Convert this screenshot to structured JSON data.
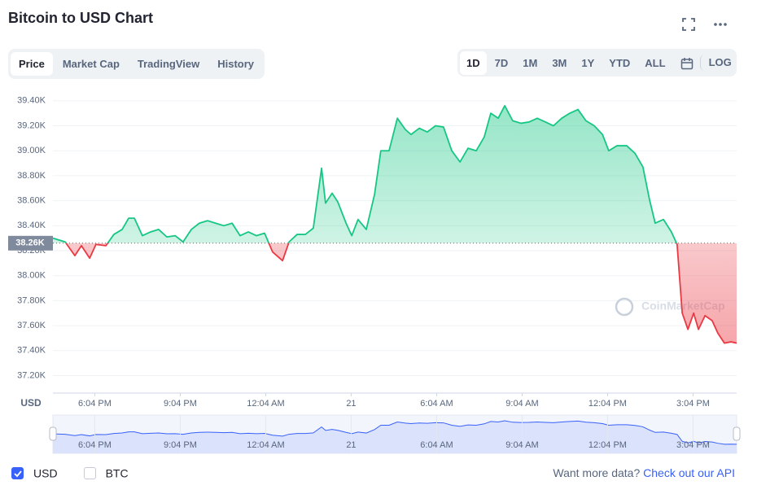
{
  "header": {
    "title": "Bitcoin to USD Chart",
    "tabs": [
      "Price",
      "Market Cap",
      "TradingView",
      "History"
    ],
    "active_tab": 0,
    "ranges": [
      "1D",
      "7D",
      "1M",
      "3M",
      "1Y",
      "YTD",
      "ALL"
    ],
    "active_range": 0,
    "log": "LOG"
  },
  "chart_data": {
    "type": "line",
    "watermark": "CoinMarketCap",
    "ylabel": "USD",
    "up_color": "#16c784",
    "down_color": "#ea3943",
    "grid": true,
    "baseline": {
      "value": 38260,
      "label": "38.26K"
    },
    "xlim": [
      16.6,
      40.6
    ],
    "xticks": [
      {
        "value": 18.07,
        "label": "6:04 PM"
      },
      {
        "value": 21.07,
        "label": "9:04 PM"
      },
      {
        "value": 24.07,
        "label": "12:04 AM"
      },
      {
        "value": 27.07,
        "label": "21"
      },
      {
        "value": 30.07,
        "label": "6:04 AM"
      },
      {
        "value": 33.07,
        "label": "9:04 AM"
      },
      {
        "value": 36.07,
        "label": "12:04 PM"
      },
      {
        "value": 39.07,
        "label": "3:04 PM"
      }
    ],
    "ylim": [
      37060,
      39490
    ],
    "yticks": [
      {
        "value": 37200,
        "label": "37.20K"
      },
      {
        "value": 37400,
        "label": "37.40K"
      },
      {
        "value": 37600,
        "label": "37.60K"
      },
      {
        "value": 37800,
        "label": "37.80K"
      },
      {
        "value": 38000,
        "label": "38.00K"
      },
      {
        "value": 38200,
        "label": "38.20K"
      },
      {
        "value": 38400,
        "label": "38.40K"
      },
      {
        "value": 38600,
        "label": "38.60K"
      },
      {
        "value": 38800,
        "label": "38.80K"
      },
      {
        "value": 39000,
        "label": "39.00K"
      },
      {
        "value": 39200,
        "label": "39.20K"
      },
      {
        "value": 39400,
        "label": "39.40K"
      }
    ],
    "x": [
      16.6,
      17.03,
      17.37,
      17.6,
      17.89,
      18.11,
      18.46,
      18.74,
      19.03,
      19.26,
      19.46,
      19.74,
      20.03,
      20.31,
      20.6,
      20.89,
      21.17,
      21.46,
      21.74,
      22.03,
      22.31,
      22.6,
      22.89,
      23.17,
      23.46,
      23.74,
      24.03,
      24.31,
      24.66,
      24.89,
      25.17,
      25.46,
      25.74,
      26.03,
      26.17,
      26.4,
      26.6,
      26.89,
      27.09,
      27.31,
      27.6,
      27.89,
      28.11,
      28.4,
      28.69,
      28.97,
      29.17,
      29.46,
      29.74,
      30.03,
      30.31,
      30.6,
      30.89,
      31.17,
      31.46,
      31.74,
      31.97,
      32.23,
      32.46,
      32.74,
      33.03,
      33.31,
      33.6,
      33.89,
      34.17,
      34.46,
      34.74,
      35.03,
      35.31,
      35.6,
      35.89,
      36.11,
      36.4,
      36.74,
      37.03,
      37.31,
      37.54,
      37.74,
      38.03,
      38.31,
      38.51,
      38.69,
      38.89,
      39.09,
      39.26,
      39.49,
      39.74,
      39.94,
      40.17,
      40.4,
      40.6
    ],
    "values": [
      38300,
      38270,
      38160,
      38240,
      38140,
      38250,
      38240,
      38330,
      38370,
      38460,
      38460,
      38320,
      38350,
      38370,
      38310,
      38320,
      38270,
      38370,
      38420,
      38440,
      38420,
      38400,
      38420,
      38320,
      38350,
      38320,
      38340,
      38190,
      38120,
      38270,
      38330,
      38330,
      38380,
      38860,
      38580,
      38660,
      38590,
      38420,
      38320,
      38450,
      38370,
      38650,
      39000,
      39000,
      39260,
      39170,
      39130,
      39180,
      39150,
      39200,
      39190,
      39000,
      38910,
      39020,
      39000,
      39110,
      39300,
      39260,
      39360,
      39240,
      39220,
      39230,
      39260,
      39230,
      39200,
      39260,
      39300,
      39330,
      39240,
      39200,
      39130,
      39000,
      39040,
      39040,
      38980,
      38870,
      38610,
      38420,
      38450,
      38350,
      38250,
      37700,
      37570,
      37700,
      37570,
      37680,
      37640,
      37540,
      37460,
      37470,
      37460
    ]
  },
  "footer": {
    "options": [
      {
        "label": "USD",
        "checked": true
      },
      {
        "label": "BTC",
        "checked": false
      }
    ],
    "prompt": "Want more data?",
    "link": "Check out our API"
  }
}
